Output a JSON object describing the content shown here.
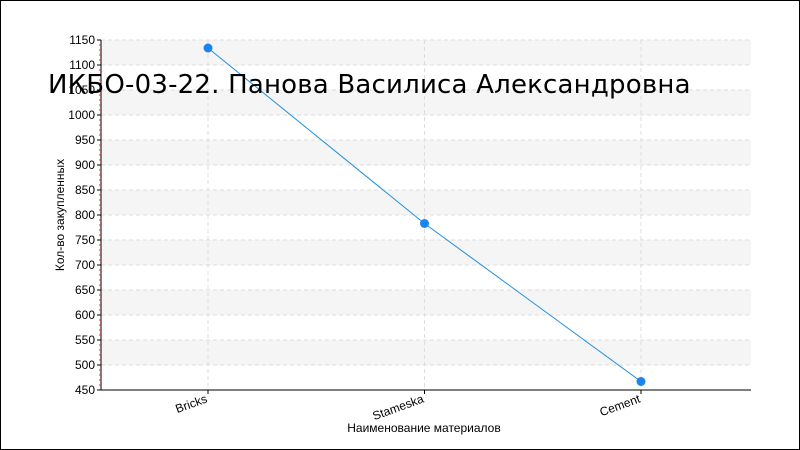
{
  "chart_data": {
    "type": "line",
    "title": "ИКБО-03-22. Панова Василиса Александровна",
    "xlabel": "Наименование материалов",
    "ylabel": "Кол-во закупленных",
    "categories": [
      "Bricks",
      "Stameska",
      "Cement"
    ],
    "values": [
      1134,
      783,
      467
    ],
    "ylim": [
      450,
      1150
    ],
    "yticks": [
      450,
      500,
      550,
      600,
      650,
      700,
      750,
      800,
      850,
      900,
      950,
      1000,
      1050,
      1100,
      1150
    ],
    "grid": true,
    "line_color": "#1f8fe0",
    "marker_color": "#1a86ec",
    "band_color": "#f5f5f5",
    "grid_color": "#dddddd"
  }
}
